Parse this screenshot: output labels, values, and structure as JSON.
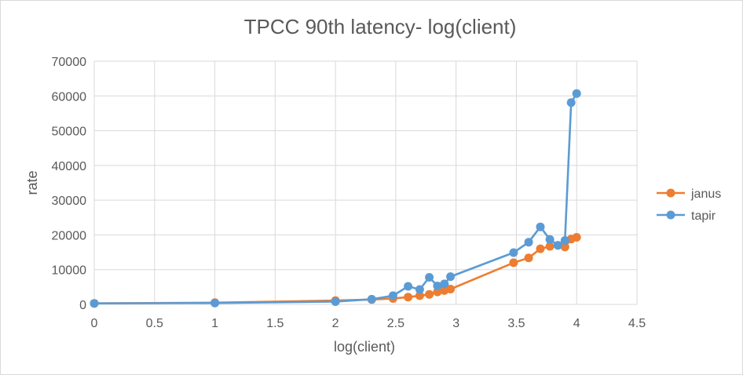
{
  "chart_data": {
    "type": "scatter",
    "title": "TPCC 90th latency- log(client)",
    "xlabel": "log(client)",
    "ylabel": "rate",
    "xlim": [
      0,
      4.5
    ],
    "ylim": [
      0,
      70000
    ],
    "x_ticks": [
      "0",
      "0.5",
      "1",
      "1.5",
      "2",
      "2.5",
      "3",
      "3.5",
      "4",
      "4.5"
    ],
    "y_ticks": [
      "0",
      "10000",
      "20000",
      "30000",
      "40000",
      "50000",
      "60000",
      "70000"
    ],
    "grid": true,
    "legend_position": "right",
    "series": [
      {
        "name": "janus",
        "color": "#ED7D31",
        "points": [
          [
            0,
            300
          ],
          [
            1,
            500
          ],
          [
            2,
            1100
          ],
          [
            2.301,
            1400
          ],
          [
            2.477,
            1700
          ],
          [
            2.602,
            2100
          ],
          [
            2.699,
            2500
          ],
          [
            2.778,
            2900
          ],
          [
            2.845,
            3600
          ],
          [
            2.903,
            4000
          ],
          [
            2.954,
            4400
          ],
          [
            3.477,
            12000
          ],
          [
            3.602,
            13400
          ],
          [
            3.699,
            16000
          ],
          [
            3.778,
            16700
          ],
          [
            3.845,
            17000
          ],
          [
            3.903,
            16500
          ],
          [
            3.954,
            18800
          ],
          [
            4.0,
            19300
          ]
        ]
      },
      {
        "name": "tapir",
        "color": "#5B9BD5",
        "points": [
          [
            0,
            300
          ],
          [
            1,
            400
          ],
          [
            2,
            800
          ],
          [
            2.301,
            1500
          ],
          [
            2.477,
            2500
          ],
          [
            2.602,
            5200
          ],
          [
            2.699,
            4300
          ],
          [
            2.778,
            7800
          ],
          [
            2.845,
            5300
          ],
          [
            2.903,
            5900
          ],
          [
            2.954,
            8000
          ],
          [
            3.477,
            14900
          ],
          [
            3.602,
            17900
          ],
          [
            3.699,
            22300
          ],
          [
            3.778,
            18700
          ],
          [
            3.845,
            17000
          ],
          [
            3.903,
            18400
          ],
          [
            3.954,
            58100
          ],
          [
            4.0,
            60700
          ]
        ]
      }
    ]
  }
}
